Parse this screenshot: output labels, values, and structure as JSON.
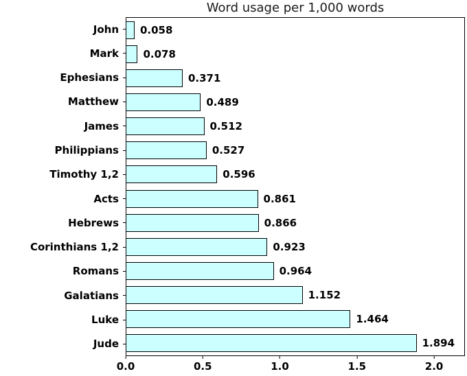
{
  "chart_data": {
    "type": "bar",
    "orientation": "horizontal",
    "title": "Word usage per 1,000 words",
    "categories": [
      "John",
      "Mark",
      "Ephesians",
      "Matthew",
      "James",
      "Philippians",
      "Timothy 1,2",
      "Acts",
      "Hebrews",
      "Corinthians 1,2",
      "Romans",
      "Galatians",
      "Luke",
      "Jude"
    ],
    "values": [
      0.058,
      0.078,
      0.371,
      0.489,
      0.512,
      0.527,
      0.596,
      0.861,
      0.866,
      0.923,
      0.964,
      1.152,
      1.464,
      1.894
    ],
    "value_labels": [
      "0.058",
      "0.078",
      "0.371",
      "0.489",
      "0.512",
      "0.527",
      "0.596",
      "0.861",
      "0.866",
      "0.923",
      "0.964",
      "1.152",
      "1.464",
      "1.894"
    ],
    "xlabel": "",
    "ylabel": "",
    "xlim": [
      0,
      2.2
    ],
    "x_ticks": [
      {
        "value": 0.0,
        "label": "0.0"
      },
      {
        "value": 0.5,
        "label": "0.5"
      },
      {
        "value": 1.0,
        "label": "1.0"
      },
      {
        "value": 1.5,
        "label": "1.5"
      },
      {
        "value": 2.0,
        "label": "2.0"
      }
    ],
    "grid": false,
    "legend": null,
    "bar_color": "#ccffff",
    "bar_edge_color": "#000000",
    "text_color": "#000000",
    "frame_color": "#000000"
  }
}
